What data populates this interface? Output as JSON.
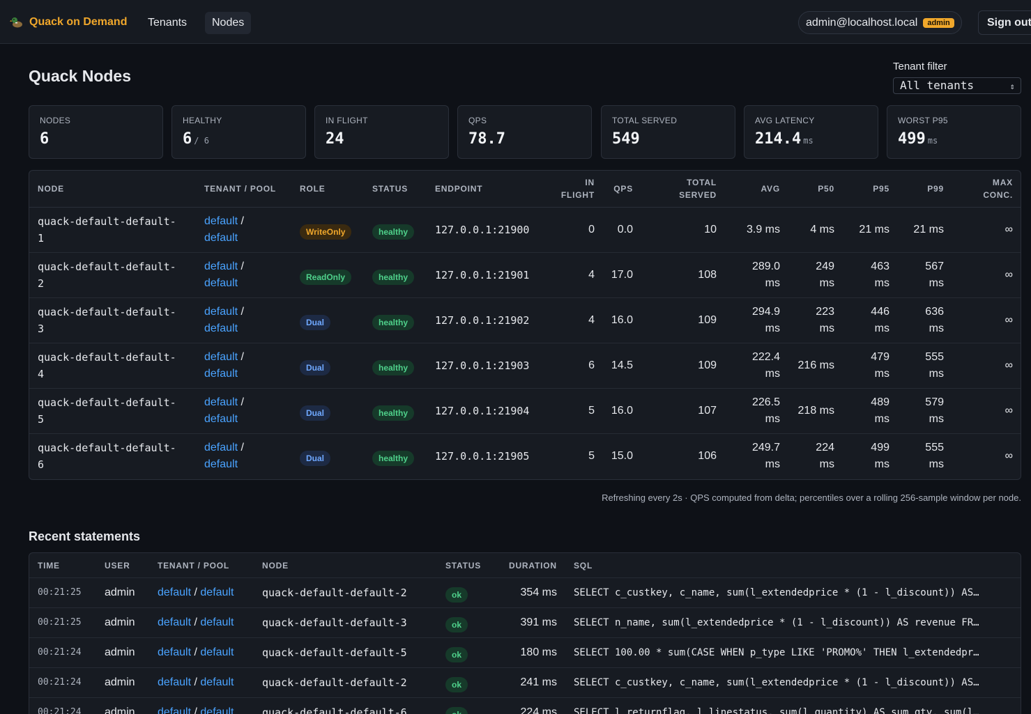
{
  "app": {
    "brand": "Quack on Demand",
    "logo_icon": "duck-icon"
  },
  "nav": {
    "tabs": [
      {
        "label": "Tenants",
        "active": false
      },
      {
        "label": "Nodes",
        "active": true
      }
    ]
  },
  "user": {
    "email": "admin@localhost.local",
    "role_badge": "admin",
    "sign_out": "Sign out"
  },
  "page": {
    "title": "Quack Nodes"
  },
  "filter": {
    "label": "Tenant filter",
    "value": "All tenants"
  },
  "stats": [
    {
      "label": "NODES",
      "value": "6",
      "unit": ""
    },
    {
      "label": "HEALTHY",
      "value": "6",
      "unit": "/ 6"
    },
    {
      "label": "IN FLIGHT",
      "value": "24",
      "unit": ""
    },
    {
      "label": "QPS",
      "value": "78.7",
      "unit": ""
    },
    {
      "label": "TOTAL SERVED",
      "value": "549",
      "unit": ""
    },
    {
      "label": "AVG LATENCY",
      "value": "214.4",
      "unit": "ms"
    },
    {
      "label": "WORST P95",
      "value": "499",
      "unit": "ms"
    }
  ],
  "nodes_table": {
    "headers": {
      "node": "NODE",
      "tenant_pool": "TENANT / POOL",
      "role": "ROLE",
      "status": "STATUS",
      "endpoint": "ENDPOINT",
      "in_flight_1": "IN",
      "in_flight_2": "FLIGHT",
      "qps": "QPS",
      "total_1": "TOTAL",
      "total_2": "SERVED",
      "avg": "AVG",
      "p50": "P50",
      "p95": "P95",
      "p99": "P99",
      "max_1": "MAX",
      "max_2": "CONC."
    },
    "rows": [
      {
        "name_1": "quack-default-default-",
        "name_2": "1",
        "tenant": "default",
        "sep": "/",
        "pool": "default",
        "role": "WriteOnly",
        "role_kind": "write",
        "status": "healthy",
        "endpoint": "127.0.0.1:21900",
        "in_flight": "0",
        "qps": "0.0",
        "total": "10",
        "avg_1": "3.9 ms",
        "avg_2": "",
        "p50_1": "4 ms",
        "p50_2": "",
        "p95_1": "21 ms",
        "p95_2": "",
        "p99_1": "21 ms",
        "p99_2": "",
        "max": "∞"
      },
      {
        "name_1": "quack-default-default-",
        "name_2": "2",
        "tenant": "default",
        "sep": "/",
        "pool": "default",
        "role": "ReadOnly",
        "role_kind": "read",
        "status": "healthy",
        "endpoint": "127.0.0.1:21901",
        "in_flight": "4",
        "qps": "17.0",
        "total": "108",
        "avg_1": "289.0",
        "avg_2": "ms",
        "p50_1": "249",
        "p50_2": "ms",
        "p95_1": "463",
        "p95_2": "ms",
        "p99_1": "567",
        "p99_2": "ms",
        "max": "∞"
      },
      {
        "name_1": "quack-default-default-",
        "name_2": "3",
        "tenant": "default",
        "sep": "/",
        "pool": "default",
        "role": "Dual",
        "role_kind": "dual",
        "status": "healthy",
        "endpoint": "127.0.0.1:21902",
        "in_flight": "4",
        "qps": "16.0",
        "total": "109",
        "avg_1": "294.9",
        "avg_2": "ms",
        "p50_1": "223",
        "p50_2": "ms",
        "p95_1": "446",
        "p95_2": "ms",
        "p99_1": "636",
        "p99_2": "ms",
        "max": "∞"
      },
      {
        "name_1": "quack-default-default-",
        "name_2": "4",
        "tenant": "default",
        "sep": "/",
        "pool": "default",
        "role": "Dual",
        "role_kind": "dual",
        "status": "healthy",
        "endpoint": "127.0.0.1:21903",
        "in_flight": "6",
        "qps": "14.5",
        "total": "109",
        "avg_1": "222.4",
        "avg_2": "ms",
        "p50_1": "216 ms",
        "p50_2": "",
        "p95_1": "479",
        "p95_2": "ms",
        "p99_1": "555",
        "p99_2": "ms",
        "max": "∞"
      },
      {
        "name_1": "quack-default-default-",
        "name_2": "5",
        "tenant": "default",
        "sep": "/",
        "pool": "default",
        "role": "Dual",
        "role_kind": "dual",
        "status": "healthy",
        "endpoint": "127.0.0.1:21904",
        "in_flight": "5",
        "qps": "16.0",
        "total": "107",
        "avg_1": "226.5",
        "avg_2": "ms",
        "p50_1": "218 ms",
        "p50_2": "",
        "p95_1": "489",
        "p95_2": "ms",
        "p99_1": "579",
        "p99_2": "ms",
        "max": "∞"
      },
      {
        "name_1": "quack-default-default-",
        "name_2": "6",
        "tenant": "default",
        "sep": "/",
        "pool": "default",
        "role": "Dual",
        "role_kind": "dual",
        "status": "healthy",
        "endpoint": "127.0.0.1:21905",
        "in_flight": "5",
        "qps": "15.0",
        "total": "106",
        "avg_1": "249.7",
        "avg_2": "ms",
        "p50_1": "224",
        "p50_2": "ms",
        "p95_1": "499",
        "p95_2": "ms",
        "p99_1": "555",
        "p99_2": "ms",
        "max": "∞"
      }
    ]
  },
  "footnote": "Refreshing every 2s · QPS computed from delta; percentiles over a rolling 256-sample window per node.",
  "statements": {
    "title": "Recent statements",
    "headers": {
      "time": "TIME",
      "user": "USER",
      "tenant_pool": "TENANT / POOL",
      "node": "NODE",
      "status": "STATUS",
      "duration": "DURATION",
      "sql": "SQL"
    },
    "rows": [
      {
        "time": "00:21:25",
        "user": "admin",
        "tenant": "default",
        "sep": "/",
        "pool": "default",
        "node": "quack-default-default-2",
        "status": "ok",
        "duration": "354 ms",
        "sql": "SELECT c_custkey, c_name, sum(l_extendedprice * (1 - l_discount)) AS…"
      },
      {
        "time": "00:21:25",
        "user": "admin",
        "tenant": "default",
        "sep": "/",
        "pool": "default",
        "node": "quack-default-default-3",
        "status": "ok",
        "duration": "391 ms",
        "sql": "SELECT n_name, sum(l_extendedprice * (1 - l_discount)) AS revenue FR…"
      },
      {
        "time": "00:21:24",
        "user": "admin",
        "tenant": "default",
        "sep": "/",
        "pool": "default",
        "node": "quack-default-default-5",
        "status": "ok",
        "duration": "180 ms",
        "sql": "SELECT 100.00 * sum(CASE WHEN p_type LIKE 'PROMO%' THEN l_extendedpr…"
      },
      {
        "time": "00:21:24",
        "user": "admin",
        "tenant": "default",
        "sep": "/",
        "pool": "default",
        "node": "quack-default-default-2",
        "status": "ok",
        "duration": "241 ms",
        "sql": "SELECT c_custkey, c_name, sum(l_extendedprice * (1 - l_discount)) AS…"
      },
      {
        "time": "00:21:24",
        "user": "admin",
        "tenant": "default",
        "sep": "/",
        "pool": "default",
        "node": "quack-default-default-6",
        "status": "ok",
        "duration": "224 ms",
        "sql": "SELECT l_returnflag, l_linestatus, sum(l_quantity) AS sum_qty, sum(l…"
      }
    ]
  },
  "colors": {
    "accent": "#f0a72b",
    "link": "#4aa3ff",
    "healthy": "#4fd18b",
    "dual": "#6fa8ff",
    "background": "#0e1117"
  }
}
